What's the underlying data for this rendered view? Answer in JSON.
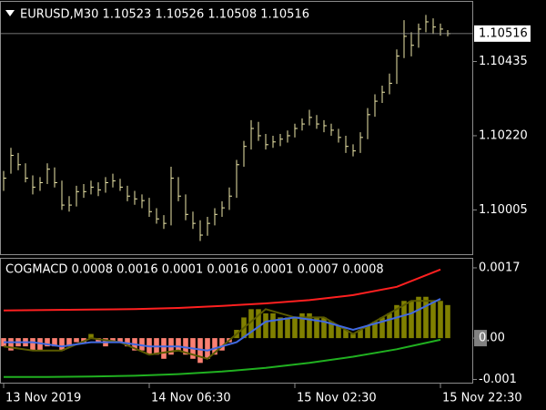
{
  "chart_data": [
    {
      "type": "ohlc",
      "title": "EURUSD,M30  1.10523 1.10526 1.10508 1.10516",
      "color": "#eee8aa",
      "xlim": [
        -0.5,
        64.5
      ],
      "ylim": [
        1.09874,
        1.10608
      ],
      "yticks": [
        1.10435,
        {
          "value": 1.1022,
          "label": "1.10220"
        },
        1.10005
      ],
      "last_price": 1.10516,
      "high": [
        1.10118,
        1.10185,
        1.1017,
        1.1014,
        1.10105,
        1.101,
        1.1014,
        1.10128,
        1.1009,
        1.10045,
        1.10075,
        1.1008,
        1.1009,
        1.10085,
        1.101,
        1.1011,
        1.10095,
        1.10075,
        1.1006,
        1.1005,
        1.1004,
        1.1001,
        1.0999,
        1.1013,
        1.101,
        1.1005,
        1.1,
        1.09975,
        1.09985,
        1.1001,
        1.1003,
        1.1007,
        1.1015,
        1.10205,
        1.10265,
        1.1026,
        1.10225,
        1.1022,
        1.10225,
        1.10235,
        1.10255,
        1.1027,
        1.10295,
        1.1028,
        1.10265,
        1.10255,
        1.1024,
        1.1022,
        1.10195,
        1.1023,
        1.103,
        1.1034,
        1.10365,
        1.104,
        1.1047,
        1.10555,
        1.1052,
        1.10545,
        1.1057,
        1.1056,
        1.10545,
        1.10526
      ],
      "low": [
        1.1006,
        1.1011,
        1.1012,
        1.10085,
        1.1005,
        1.1006,
        1.1008,
        1.1007,
        1.10005,
        1.1,
        1.10015,
        1.1004,
        1.1005,
        1.10045,
        1.10055,
        1.1007,
        1.1006,
        1.1003,
        1.1002,
        1.1001,
        1.09985,
        1.09965,
        1.0995,
        1.0996,
        1.1003,
        1.09975,
        1.0995,
        1.09915,
        1.0993,
        1.0996,
        1.09985,
        1.10005,
        1.1004,
        1.1013,
        1.1018,
        1.10205,
        1.1018,
        1.10185,
        1.1019,
        1.102,
        1.10215,
        1.10235,
        1.1025,
        1.1024,
        1.1023,
        1.1022,
        1.102,
        1.1017,
        1.1016,
        1.1017,
        1.1021,
        1.10275,
        1.10315,
        1.1034,
        1.1037,
        1.10445,
        1.1045,
        1.10475,
        1.1052,
        1.10515,
        1.1051,
        1.10508
      ],
      "close": [
        1.10097,
        1.10163,
        1.10136,
        1.10097,
        1.10071,
        1.10084,
        1.10123,
        1.10084,
        1.10019,
        1.10019,
        1.10058,
        1.10058,
        1.10071,
        1.10063,
        1.10084,
        1.10089,
        1.10071,
        1.10045,
        1.10037,
        1.10032,
        1.1,
        1.09979,
        1.09966,
        1.10097,
        1.10045,
        1.09992,
        1.09966,
        1.09932,
        1.09966,
        1.09992,
        1.10011,
        1.10045,
        1.10136,
        1.10189,
        1.10241,
        1.1022,
        1.10194,
        1.10202,
        1.1021,
        1.1022,
        1.10241,
        1.10254,
        1.10273,
        1.10254,
        1.10249,
        1.10236,
        1.10215,
        1.10189,
        1.10176,
        1.10215,
        1.10281,
        1.1032,
        1.10346,
        1.10372,
        1.10451,
        1.10508,
        1.10482,
        1.10529,
        1.1055,
        1.10535,
        1.10529,
        1.10516
      ]
    },
    {
      "type": "macd",
      "title": "COGMACD 0.0008 0.0016 0.0001 0.0016 0.0001 0.0007 0.0008",
      "xlim": [
        -0.5,
        64.5
      ],
      "ylim": [
        -0.0011,
        0.00192
      ],
      "yticks": [
        0.0017,
        {
          "value": 0,
          "label": "0.00"
        },
        -0.001
      ],
      "xticks": [
        {
          "value": 0,
          "label": "13 Nov 2019"
        },
        {
          "value": 20,
          "label": "14 Nov 06:30"
        },
        {
          "value": 40,
          "label": "15 Nov 02:30"
        },
        {
          "value": 60,
          "label": "15 Nov 22:30"
        }
      ],
      "histogram": {
        "positive_color": "#808000",
        "negative_color": "#fa8072",
        "values": [
          -0.0002,
          -0.0003,
          -0.0002,
          -0.0002,
          -0.0003,
          -0.0003,
          -0.0002,
          -0.0002,
          -0.0003,
          -0.0002,
          -0.0001,
          -0.0001,
          0.0001,
          -0.0001,
          -0.0002,
          -0.0001,
          -0.0001,
          -0.0002,
          -0.0003,
          -0.0003,
          -0.0004,
          -0.0004,
          -0.0005,
          -0.0004,
          -0.0003,
          -0.0004,
          -0.0005,
          -0.0006,
          -0.0005,
          -0.0004,
          -0.0003,
          -0.0001,
          0.0002,
          0.0005,
          0.0007,
          0.0007,
          0.0006,
          0.0006,
          0.0005,
          0.0005,
          0.0005,
          0.0006,
          0.0006,
          0.0005,
          0.0005,
          0.0004,
          0.0003,
          0.0002,
          0.0001,
          0.0002,
          0.0003,
          0.0004,
          0.0005,
          0.0006,
          0.0008,
          0.0009,
          0.0009,
          0.001,
          0.001,
          0.0009,
          0.0009,
          0.0008
        ]
      },
      "series": [
        {
          "color": "#ff2020",
          "x": [
            0,
            6,
            12,
            18,
            24,
            30,
            36,
            42,
            48,
            54,
            60
          ],
          "values": [
            0.00067,
            0.00068,
            0.00069,
            0.0007,
            0.00073,
            0.00078,
            0.00084,
            0.00092,
            0.00104,
            0.00124,
            0.00166
          ]
        },
        {
          "color": "#20b020",
          "x": [
            0,
            6,
            12,
            18,
            24,
            30,
            36,
            42,
            48,
            54,
            60
          ],
          "values": [
            -0.00094,
            -0.00094,
            -0.00093,
            -0.00091,
            -0.00087,
            -0.00081,
            -0.00072,
            -0.0006,
            -0.00045,
            -0.00027,
            -4e-05
          ]
        },
        {
          "color": "#5a5a00",
          "x": [
            0,
            4,
            8,
            12,
            16,
            20,
            24,
            28,
            32,
            36,
            40,
            44,
            48,
            52,
            56,
            60
          ],
          "values": [
            -0.0002,
            -0.0003,
            -0.0003,
            0,
            -0.0001,
            -0.0004,
            -0.0003,
            -0.0005,
            0.0001,
            0.0007,
            0.0005,
            0.0005,
            0.0001,
            0.0005,
            0.0009,
            0.0009
          ]
        },
        {
          "color": "#4169e1",
          "x": [
            0,
            4,
            8,
            12,
            16,
            20,
            24,
            28,
            32,
            36,
            40,
            44,
            48,
            52,
            56,
            60
          ],
          "values": [
            -0.0001,
            -0.0001,
            -0.0002,
            -0.0001,
            -0.0001,
            -0.0002,
            -0.0002,
            -0.0003,
            -0.0001,
            0.0004,
            0.0005,
            0.0004,
            0.0002,
            0.0004,
            0.0006,
            0.00095
          ]
        }
      ]
    }
  ]
}
